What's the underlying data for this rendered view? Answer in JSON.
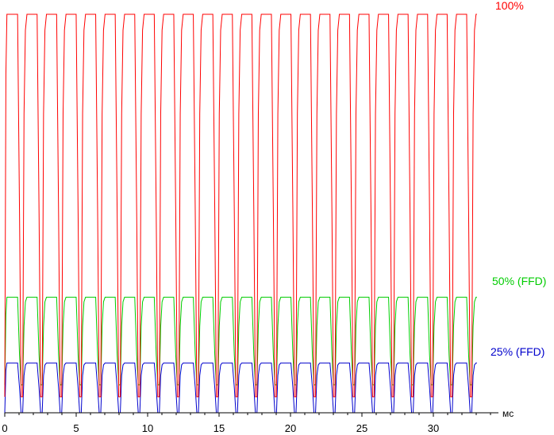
{
  "chart_data": {
    "type": "line",
    "x_unit": "мс",
    "xlim": [
      0,
      34.6
    ],
    "ylim": [
      0,
      100
    ],
    "x_ticks": [
      0,
      5,
      10,
      15,
      20,
      25,
      30
    ],
    "x_tick_labels": [
      "0",
      "5",
      "10",
      "15",
      "20",
      "25",
      "30"
    ],
    "grid": false,
    "period": 1.3667,
    "cycles": 24,
    "series": [
      {
        "name": "100%",
        "color": "#ff0000",
        "baseline": 0,
        "plateau": 100,
        "low": 4
      },
      {
        "name": "50% (FFD)",
        "color": "#00cc00",
        "baseline": 0,
        "plateau": 29,
        "low": 7
      },
      {
        "name": "25% (FFD)",
        "color": "#0000cc",
        "baseline": 0,
        "plateau": 12.5,
        "low": 0
      }
    ]
  }
}
